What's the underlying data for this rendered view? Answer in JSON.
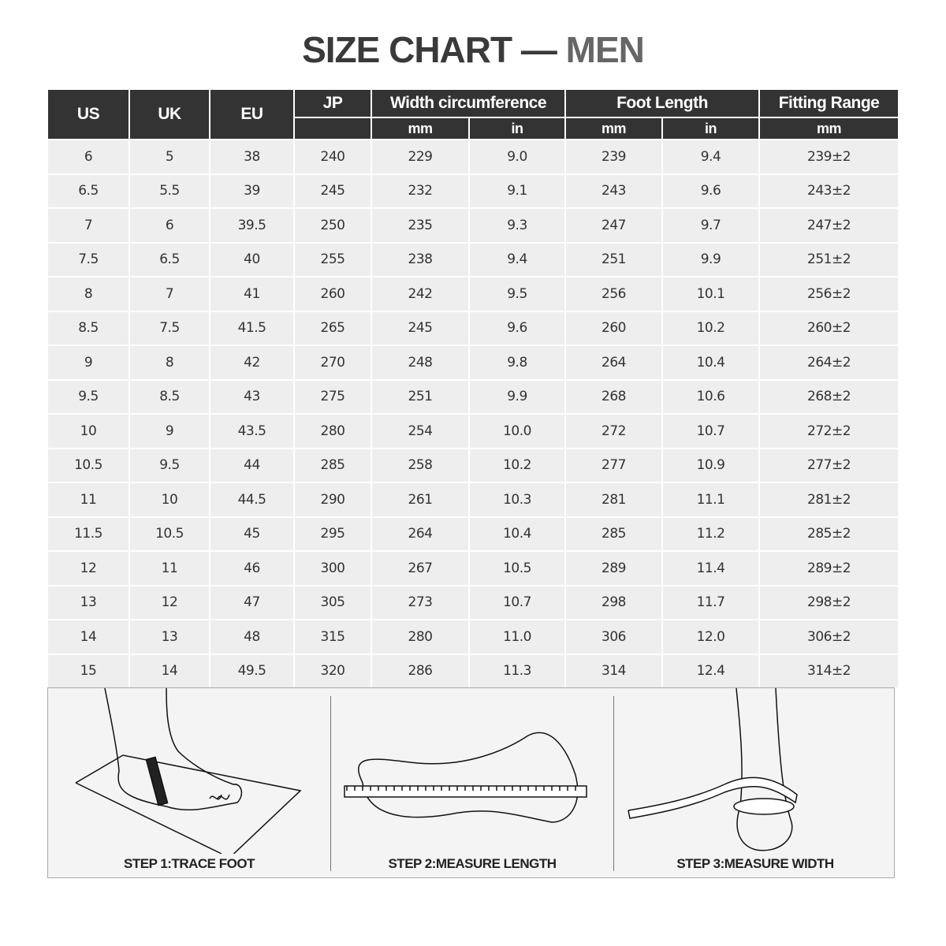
{
  "title": {
    "main": "SIZE CHART",
    "dash": "—",
    "sub": "MEN"
  },
  "table": {
    "headers": {
      "us": "US",
      "uk": "UK",
      "eu": "EU",
      "jp": "JP",
      "width": "Width circumference",
      "foot": "Foot Length",
      "fit": "Fitting Range"
    },
    "subheaders": {
      "width_mm": "mm",
      "width_in": "in",
      "foot_mm": "mm",
      "foot_in": "in",
      "fit_mm": "mm"
    },
    "rows": [
      [
        "6",
        "5",
        "38",
        "240",
        "229",
        "9.0",
        "239",
        "9.4",
        "239±2"
      ],
      [
        "6.5",
        "5.5",
        "39",
        "245",
        "232",
        "9.1",
        "243",
        "9.6",
        "243±2"
      ],
      [
        "7",
        "6",
        "39.5",
        "250",
        "235",
        "9.3",
        "247",
        "9.7",
        "247±2"
      ],
      [
        "7.5",
        "6.5",
        "40",
        "255",
        "238",
        "9.4",
        "251",
        "9.9",
        "251±2"
      ],
      [
        "8",
        "7",
        "41",
        "260",
        "242",
        "9.5",
        "256",
        "10.1",
        "256±2"
      ],
      [
        "8.5",
        "7.5",
        "41.5",
        "265",
        "245",
        "9.6",
        "260",
        "10.2",
        "260±2"
      ],
      [
        "9",
        "8",
        "42",
        "270",
        "248",
        "9.8",
        "264",
        "10.4",
        "264±2"
      ],
      [
        "9.5",
        "8.5",
        "43",
        "275",
        "251",
        "9.9",
        "268",
        "10.6",
        "268±2"
      ],
      [
        "10",
        "9",
        "43.5",
        "280",
        "254",
        "10.0",
        "272",
        "10.7",
        "272±2"
      ],
      [
        "10.5",
        "9.5",
        "44",
        "285",
        "258",
        "10.2",
        "277",
        "10.9",
        "277±2"
      ],
      [
        "11",
        "10",
        "44.5",
        "290",
        "261",
        "10.3",
        "281",
        "11.1",
        "281±2"
      ],
      [
        "11.5",
        "10.5",
        "45",
        "295",
        "264",
        "10.4",
        "285",
        "11.2",
        "285±2"
      ],
      [
        "12",
        "11",
        "46",
        "300",
        "267",
        "10.5",
        "289",
        "11.4",
        "289±2"
      ],
      [
        "13",
        "12",
        "47",
        "305",
        "273",
        "10.7",
        "298",
        "11.7",
        "298±2"
      ],
      [
        "14",
        "13",
        "48",
        "315",
        "280",
        "11.0",
        "306",
        "12.0",
        "306±2"
      ],
      [
        "15",
        "14",
        "49.5",
        "320",
        "286",
        "11.3",
        "314",
        "12.4",
        "314±2"
      ]
    ]
  },
  "steps": [
    "STEP 1:TRACE FOOT",
    "STEP 2:MEASURE LENGTH",
    "STEP 3:MEASURE WIDTH"
  ]
}
